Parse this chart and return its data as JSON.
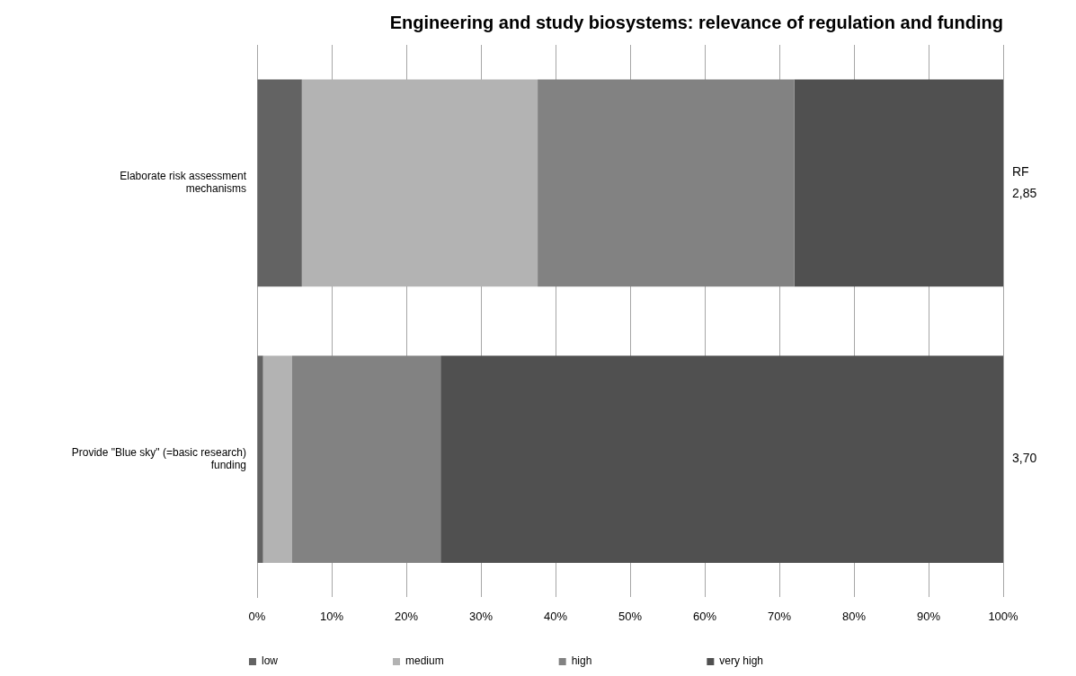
{
  "chart_data": {
    "type": "bar",
    "orientation": "horizontal",
    "stacked": true,
    "title": "Engineering and study biosystems: relevance of regulation and funding",
    "categories": [
      "Elaborate risk assessment mechanisms",
      "Provide \"Blue sky\" (=basic research) funding"
    ],
    "series": [
      {
        "name": "low",
        "color": "#636363",
        "values": [
          6,
          0.8
        ]
      },
      {
        "name": "medium",
        "color": "#b3b3b3",
        "values": [
          31.6,
          3.9
        ]
      },
      {
        "name": "high",
        "color": "#828282",
        "values": [
          34.4,
          19.9
        ]
      },
      {
        "name": "very high",
        "color": "#505050",
        "values": [
          28,
          75.4
        ]
      }
    ],
    "xlim": [
      0,
      100
    ],
    "xticks": [
      {
        "value": 0,
        "label": "0%"
      },
      {
        "value": 10,
        "label": "10%"
      },
      {
        "value": 20,
        "label": "20%"
      },
      {
        "value": 30,
        "label": "30%"
      },
      {
        "value": 40,
        "label": "40%"
      },
      {
        "value": 50,
        "label": "50%"
      },
      {
        "value": 60,
        "label": "60%"
      },
      {
        "value": 70,
        "label": "70%"
      },
      {
        "value": 80,
        "label": "80%"
      },
      {
        "value": 90,
        "label": "90%"
      },
      {
        "value": 100,
        "label": "100%"
      }
    ],
    "grid": "x",
    "legend": "bottom",
    "annotations": [
      "RF",
      {
        "text": "2,85",
        "x": 100,
        "y": "Elaborate risk assessment mechanisms"
      },
      {
        "text": "3,70",
        "x": 100,
        "y": "Provide \"Blue sky\" (=basic research) funding"
      }
    ]
  }
}
